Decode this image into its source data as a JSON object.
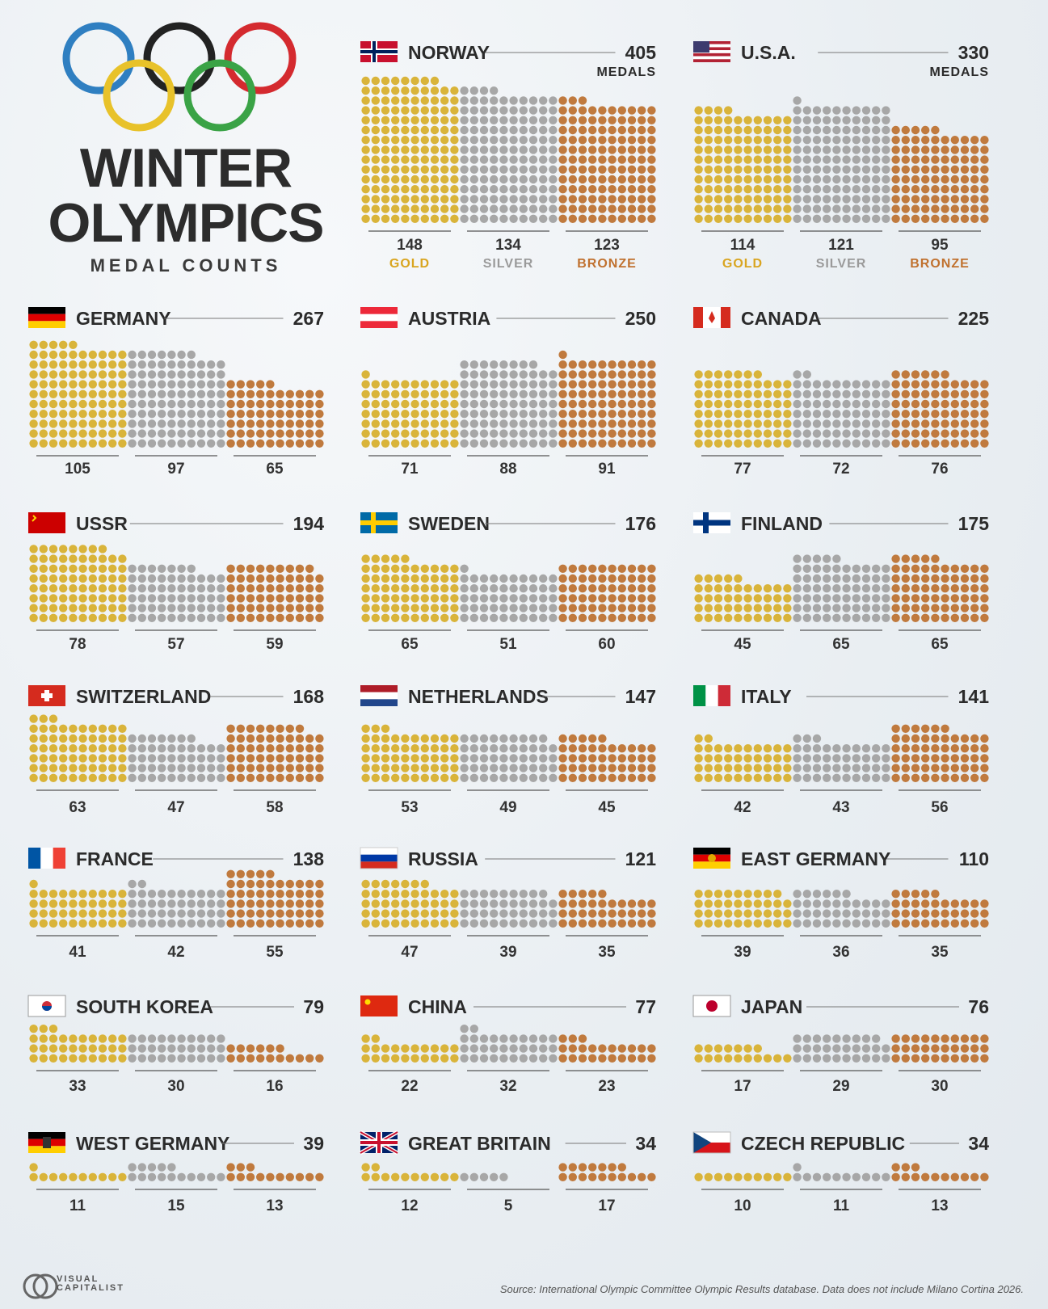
{
  "header": {
    "title_line1": "WINTER",
    "title_line2": "OLYMPICS",
    "subtitle": "MEDAL COUNTS",
    "ring_colors": [
      "#2f7fc1",
      "#222222",
      "#d42a2f",
      "#e8c22a",
      "#3aa346"
    ]
  },
  "labels": {
    "gold": "GOLD",
    "silver": "SILVER",
    "bronze": "BRONZE",
    "medals": "MEDALS"
  },
  "colors": {
    "gold": "#d9b43a",
    "silver": "#a7a7a7",
    "bronze": "#c07a3e",
    "gold_text": "#d9a520",
    "silver_text": "#9a9a9a",
    "bronze_text": "#c0712f"
  },
  "chart_data": {
    "type": "bar",
    "title": "WINTER OLYMPICS MEDAL COUNTS",
    "categories": [
      "GOLD",
      "SILVER",
      "BRONZE"
    ],
    "countries": [
      {
        "name": "NORWAY",
        "total": "405",
        "gold": 148,
        "silver": 134,
        "bronze": 123,
        "flag": "norway"
      },
      {
        "name": "U.S.A.",
        "total": "330",
        "gold": 114,
        "silver": 121,
        "bronze": 95,
        "flag": "usa"
      },
      {
        "name": "GERMANY",
        "total": "267",
        "gold": 105,
        "silver": 97,
        "bronze": 65,
        "flag": "germany"
      },
      {
        "name": "AUSTRIA",
        "total": "250",
        "gold": 71,
        "silver": 88,
        "bronze": 91,
        "flag": "austria"
      },
      {
        "name": "CANADA",
        "total": "225",
        "gold": 77,
        "silver": 72,
        "bronze": 76,
        "flag": "canada"
      },
      {
        "name": "USSR",
        "total": "194",
        "gold": 78,
        "silver": 57,
        "bronze": 59,
        "flag": "ussr"
      },
      {
        "name": "SWEDEN",
        "total": "176",
        "gold": 65,
        "silver": 51,
        "bronze": 60,
        "flag": "sweden"
      },
      {
        "name": "FINLAND",
        "total": "175",
        "gold": 45,
        "silver": 65,
        "bronze": 65,
        "flag": "finland"
      },
      {
        "name": "SWITZERLAND",
        "total": "168",
        "gold": 63,
        "silver": 47,
        "bronze": 58,
        "flag": "switzerland"
      },
      {
        "name": "NETHERLANDS",
        "total": "147",
        "gold": 53,
        "silver": 49,
        "bronze": 45,
        "flag": "netherlands"
      },
      {
        "name": "ITALY",
        "total": "141",
        "gold": 42,
        "silver": 43,
        "bronze": 56,
        "flag": "italy"
      },
      {
        "name": "FRANCE",
        "total": "138",
        "gold": 41,
        "silver": 42,
        "bronze": 55,
        "flag": "france"
      },
      {
        "name": "RUSSIA",
        "total": "121",
        "gold": 47,
        "silver": 39,
        "bronze": 35,
        "flag": "russia"
      },
      {
        "name": "EAST GERMANY",
        "total": "110",
        "gold": 39,
        "silver": 36,
        "bronze": 35,
        "flag": "eastgermany"
      },
      {
        "name": "SOUTH KOREA",
        "total": "79",
        "gold": 33,
        "silver": 30,
        "bronze": 16,
        "flag": "southkorea"
      },
      {
        "name": "CHINA",
        "total": "77",
        "gold": 22,
        "silver": 32,
        "bronze": 23,
        "flag": "china"
      },
      {
        "name": "JAPAN",
        "total": "76",
        "gold": 17,
        "silver": 29,
        "bronze": 30,
        "flag": "japan"
      },
      {
        "name": "WEST GERMANY",
        "total": "39",
        "gold": 11,
        "silver": 15,
        "bronze": 13,
        "flag": "westgermany"
      },
      {
        "name": "GREAT BRITAIN",
        "total": "34",
        "gold": 12,
        "silver": 5,
        "bronze": 17,
        "flag": "uk"
      },
      {
        "name": "CZECH REPUBLIC",
        "total": "34",
        "gold": 10,
        "silver": 11,
        "bronze": 13,
        "flag": "czech"
      }
    ]
  },
  "footer": {
    "logo_line1": "VISUAL",
    "logo_line2": "CAPITALIST",
    "source": "Source: International Olympic Committee Olympic Results database. Data does not include Milano Cortina 2026."
  }
}
